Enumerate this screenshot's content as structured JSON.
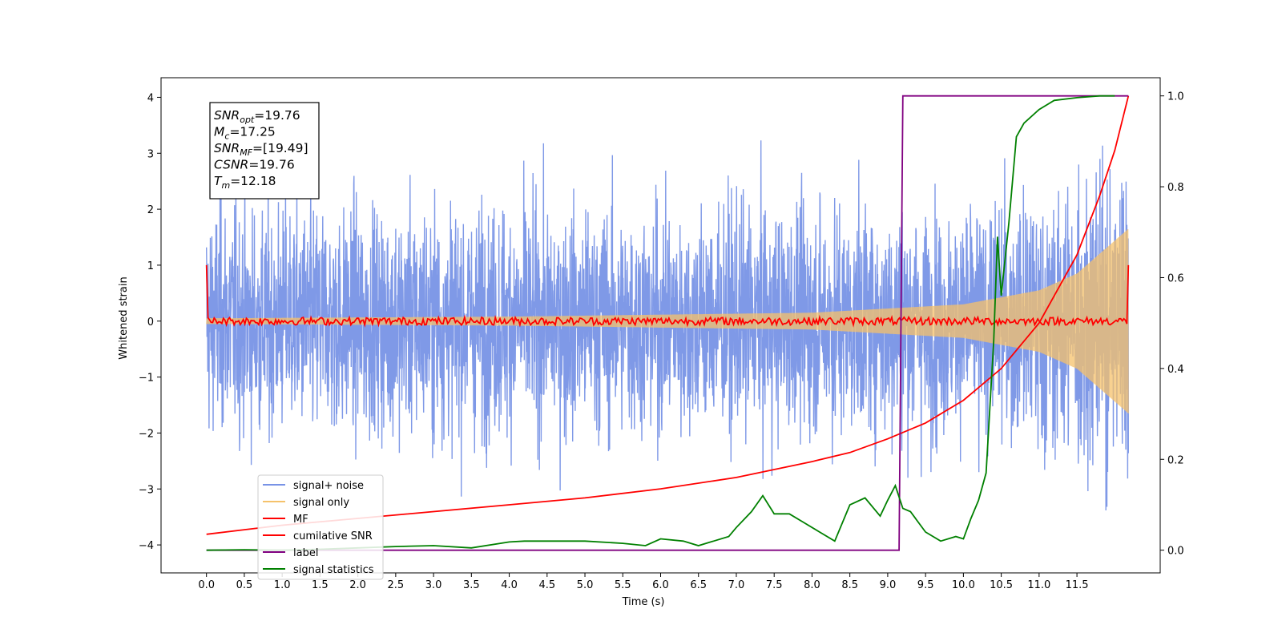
{
  "chart_data": {
    "type": "line",
    "xlabel": "Time (s)",
    "ylabel_left": "Whitened strain",
    "xlim": [
      -0.6,
      12.6
    ],
    "ylim_left": [
      -4.5,
      4.35
    ],
    "ylim_right": [
      -0.05,
      1.04
    ],
    "x_ticks": [
      "0.0",
      "0.5",
      "1.0",
      "1.5",
      "2.0",
      "2.5",
      "3.0",
      "3.5",
      "4.0",
      "4.5",
      "5.0",
      "5.5",
      "6.0",
      "6.5",
      "7.0",
      "7.5",
      "8.0",
      "8.5",
      "9.0",
      "9.5",
      "10.0",
      "10.5",
      "11.0",
      "11.5"
    ],
    "y_ticks_left": [
      "4",
      "3",
      "2",
      "1",
      "0",
      "−1",
      "−2",
      "−3",
      "−4"
    ],
    "y_ticks_right": [
      "1.0",
      "0.8",
      "0.6",
      "0.4",
      "0.2",
      "0.0"
    ],
    "grid": false,
    "legend_position": "lower-left",
    "annotation": {
      "snr_opt": {
        "name": "SNR",
        "sub": "opt",
        "value": "=19.76"
      },
      "mc": {
        "name": "M",
        "sub": "c",
        "value": "=17.25"
      },
      "snr_mf": {
        "name": "SNR",
        "sub": "MF",
        "value": "=[19.49]"
      },
      "csnr": {
        "name": "CSNR",
        "sub": "",
        "value": "=19.76"
      },
      "tm": {
        "name": "T",
        "sub": "m",
        "value": "=12.18"
      }
    },
    "series": [
      {
        "name": "signal+ noise",
        "color": "#7893e6",
        "axis": "left",
        "description": "noise ~N(0,1.2) plus chirp",
        "x_range": [
          0.0,
          12.18
        ],
        "envelope_approx": [
          -3.4,
          3.97
        ]
      },
      {
        "name": "signal only",
        "color": "#f5c26b",
        "axis": "left",
        "description": "chirp with growing amplitude",
        "x": [
          0.0,
          4.0,
          8.0,
          10.0,
          11.0,
          11.5,
          12.18
        ],
        "amplitude": [
          0.05,
          0.08,
          0.15,
          0.3,
          0.55,
          0.85,
          1.65
        ]
      },
      {
        "name": "MF",
        "color": "#ff0000",
        "axis": "left",
        "description": "matched filter output near 0, spike 1.0 at edges",
        "x": [
          0.0,
          0.03,
          12.15,
          12.18
        ],
        "y": [
          1.0,
          0.0,
          0.0,
          1.0
        ]
      },
      {
        "name": "cumilative SNR",
        "color": "#ff0000",
        "axis": "right",
        "x": [
          0.0,
          0.5,
          1.0,
          2.0,
          3.0,
          4.0,
          5.0,
          6.0,
          7.0,
          8.0,
          8.5,
          9.0,
          9.5,
          10.0,
          10.5,
          11.0,
          11.5,
          11.8,
          12.0,
          12.18
        ],
        "y": [
          0.035,
          0.045,
          0.055,
          0.07,
          0.085,
          0.1,
          0.115,
          0.135,
          0.16,
          0.195,
          0.215,
          0.245,
          0.28,
          0.33,
          0.4,
          0.5,
          0.65,
          0.78,
          0.88,
          1.0
        ]
      },
      {
        "name": "label",
        "color": "#800080",
        "axis": "right",
        "x": [
          0.0,
          9.15,
          9.2,
          12.18
        ],
        "y": [
          0.0,
          0.0,
          1.0,
          1.0
        ]
      },
      {
        "name": "signal statistics",
        "color": "#008000",
        "axis": "right",
        "x": [
          0.0,
          0.5,
          1.0,
          1.5,
          2.0,
          2.5,
          3.0,
          3.5,
          4.0,
          4.2,
          4.5,
          5.0,
          5.5,
          5.8,
          6.0,
          6.3,
          6.5,
          6.7,
          6.9,
          7.0,
          7.2,
          7.35,
          7.5,
          7.7,
          7.9,
          8.1,
          8.3,
          8.5,
          8.7,
          8.9,
          9.0,
          9.1,
          9.2,
          9.3,
          9.5,
          9.7,
          9.9,
          10.0,
          10.1,
          10.2,
          10.3,
          10.4,
          10.45,
          10.5,
          10.6,
          10.7,
          10.8,
          11.0,
          11.2,
          11.5,
          11.8,
          12.0
        ],
        "y": [
          0.0,
          0.001,
          0.0,
          0.002,
          0.005,
          0.008,
          0.01,
          0.005,
          0.018,
          0.02,
          0.02,
          0.02,
          0.015,
          0.01,
          0.025,
          0.02,
          0.01,
          0.02,
          0.03,
          0.05,
          0.085,
          0.12,
          0.08,
          0.08,
          0.06,
          0.04,
          0.02,
          0.1,
          0.115,
          0.075,
          0.11,
          0.142,
          0.092,
          0.085,
          0.04,
          0.02,
          0.03,
          0.025,
          0.07,
          0.11,
          0.17,
          0.46,
          0.69,
          0.56,
          0.72,
          0.91,
          0.94,
          0.97,
          0.99,
          0.996,
          1.0,
          1.0
        ]
      }
    ]
  }
}
